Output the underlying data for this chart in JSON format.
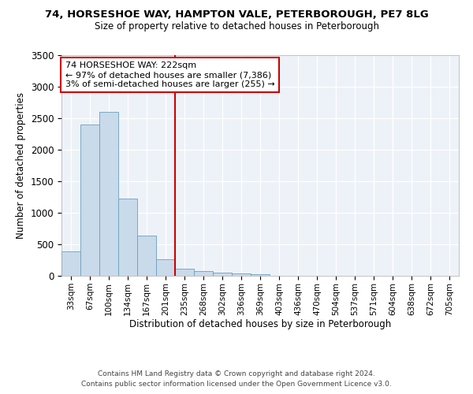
{
  "title_line1": "74, HORSESHOE WAY, HAMPTON VALE, PETERBOROUGH, PE7 8LG",
  "title_line2": "Size of property relative to detached houses in Peterborough",
  "xlabel": "Distribution of detached houses by size in Peterborough",
  "ylabel": "Number of detached properties",
  "annotation_line1": "74 HORSESHOE WAY: 222sqm",
  "annotation_line2": "← 97% of detached houses are smaller (7,386)",
  "annotation_line3": "3% of semi-detached houses are larger (255) →",
  "vline_x": 5.5,
  "bar_color": "#c9daea",
  "bar_edge_color": "#6a9fc0",
  "vline_color": "#cc0000",
  "background_color": "#edf2f8",
  "bin_labels": [
    "33sqm",
    "67sqm",
    "100sqm",
    "134sqm",
    "167sqm",
    "201sqm",
    "235sqm",
    "268sqm",
    "302sqm",
    "336sqm",
    "369sqm",
    "403sqm",
    "436sqm",
    "470sqm",
    "504sqm",
    "537sqm",
    "571sqm",
    "604sqm",
    "638sqm",
    "672sqm",
    "705sqm"
  ],
  "values": [
    390,
    2400,
    2600,
    1220,
    640,
    260,
    110,
    70,
    55,
    40,
    25,
    0,
    0,
    0,
    0,
    0,
    0,
    0,
    0,
    0,
    0
  ],
  "ylim": [
    0,
    3500
  ],
  "yticks": [
    0,
    500,
    1000,
    1500,
    2000,
    2500,
    3000,
    3500
  ],
  "footer_line1": "Contains HM Land Registry data © Crown copyright and database right 2024.",
  "footer_line2": "Contains public sector information licensed under the Open Government Licence v3.0."
}
